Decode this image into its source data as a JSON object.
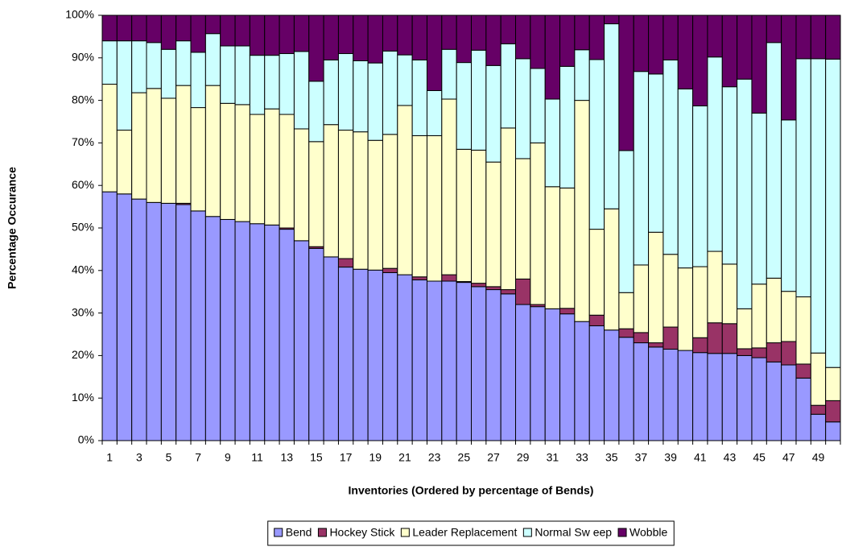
{
  "chart_data": {
    "type": "bar",
    "stacked": true,
    "ylabel": "Percentage Occurance",
    "xlabel": "Inventories (Ordered by percentage of Bends)",
    "categories": [
      "1",
      null,
      "3",
      null,
      "5",
      null,
      "7",
      null,
      "9",
      null,
      "11",
      null,
      "13",
      null,
      "15",
      null,
      "17",
      null,
      "19",
      null,
      "21",
      null,
      "23",
      null,
      "25",
      null,
      "27",
      null,
      "29",
      null,
      "31",
      null,
      "33",
      null,
      "35",
      null,
      "37",
      null,
      "39",
      null,
      "41",
      null,
      "43",
      null,
      "45",
      null,
      "47",
      null,
      "49",
      null
    ],
    "ylim": [
      0,
      100
    ],
    "yticks": [
      {
        "value": 0,
        "label": "0%"
      },
      {
        "value": 10,
        "label": "10%"
      },
      {
        "value": 20,
        "label": "20%"
      },
      {
        "value": 30,
        "label": "30%"
      },
      {
        "value": 40,
        "label": "40%"
      },
      {
        "value": 50,
        "label": "50%"
      },
      {
        "value": 60,
        "label": "60%"
      },
      {
        "value": 70,
        "label": "70%"
      },
      {
        "value": 80,
        "label": "80%"
      },
      {
        "value": 90,
        "label": "90%"
      },
      {
        "value": 100,
        "label": "100%"
      }
    ],
    "grid": false,
    "legend": "bottom",
    "series": [
      {
        "name": "Bend",
        "color": "#9999ff",
        "values": [
          58.5,
          58,
          56.8,
          56,
          55.8,
          55.5,
          54,
          52.7,
          52,
          51.5,
          51,
          50.7,
          49.7,
          47,
          45.2,
          43.2,
          40.8,
          40.3,
          40.1,
          39.5,
          39,
          37.8,
          37.5,
          37.5,
          37.2,
          36.2,
          35.5,
          34.5,
          32,
          31.5,
          31,
          29.8,
          28,
          27,
          26,
          24.3,
          23,
          22,
          21.5,
          21.2,
          20.7,
          20.5,
          20.5,
          20,
          19.5,
          18.5,
          17.8,
          14.7,
          6.2,
          4.4
        ]
      },
      {
        "name": "Hockey Stick",
        "color": "#993366",
        "values": [
          0,
          0,
          0,
          0,
          0,
          0.3,
          0,
          0,
          0,
          0,
          0,
          0,
          0.3,
          0,
          0.4,
          0,
          2,
          0,
          0,
          1,
          0,
          0.7,
          0,
          1.5,
          0.2,
          0.8,
          0.7,
          1,
          6,
          0.5,
          0,
          1.3,
          0,
          2.5,
          0,
          2,
          2.4,
          1,
          5.2,
          0,
          3.5,
          7.2,
          7,
          1.6,
          2.3,
          4.5,
          5.5,
          3.3,
          2.1,
          5
        ]
      },
      {
        "name": "Leader Replacement",
        "color": "#ffffcc",
        "values": [
          25.3,
          15,
          25,
          26.8,
          24.7,
          27.7,
          24.3,
          30.8,
          27.3,
          27.5,
          25.7,
          27.3,
          26.7,
          26.3,
          24.7,
          31.1,
          30.2,
          32.3,
          30.5,
          31.5,
          39.8,
          33.2,
          34.2,
          41.3,
          31.1,
          31.3,
          29.3,
          38,
          28.3,
          38,
          28.7,
          28.3,
          52,
          20.2,
          28.5,
          8.5,
          15.9,
          26,
          17.1,
          19.4,
          16.7,
          16.8,
          14,
          9.4,
          15,
          15.2,
          11.8,
          15.8,
          12.3,
          7.8
        ]
      },
      {
        "name": "Normal Sw eep",
        "color": "#ccffff",
        "values": [
          10.2,
          21,
          12.2,
          10.8,
          11.5,
          10.5,
          13,
          12.2,
          13.5,
          13.8,
          13.9,
          12.6,
          14.3,
          18.2,
          14.2,
          15.2,
          18,
          16.7,
          18.2,
          19.6,
          11.9,
          17.8,
          10.6,
          11.7,
          20.4,
          23.5,
          22.7,
          19.8,
          23.5,
          17.5,
          20.6,
          28.6,
          11.9,
          39.9,
          43.5,
          33.4,
          45.5,
          37.2,
          45.7,
          42.1,
          37.8,
          45.7,
          41.7,
          54,
          40.2,
          55.4,
          40.3,
          56,
          69.2,
          72.5
        ]
      },
      {
        "name": "Wobble",
        "color": "#660066",
        "values": [
          6,
          6,
          6,
          6.4,
          8,
          6,
          8.7,
          4.3,
          7.2,
          7.2,
          9.4,
          9.4,
          9,
          8.5,
          15.5,
          10.5,
          9,
          10.7,
          11.2,
          8.4,
          9.3,
          10.5,
          17.7,
          8,
          11.1,
          8.2,
          11.8,
          6.7,
          10.2,
          12.5,
          19.7,
          12,
          8.1,
          10.4,
          2,
          31.8,
          13.2,
          13.8,
          10.5,
          17.3,
          21.3,
          9.8,
          16.8,
          15,
          23,
          6.4,
          24.6,
          10.2,
          10.2,
          10.3
        ]
      }
    ]
  }
}
